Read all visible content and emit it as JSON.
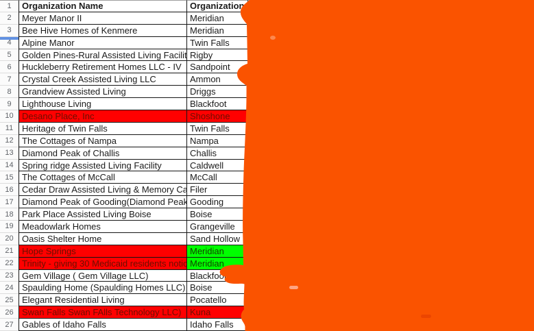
{
  "header": {
    "row_num": "1",
    "name_label": "Organization Name",
    "city_label": "Organization City"
  },
  "rows": [
    {
      "num": "2",
      "name": "Meyer Manor II",
      "city": "Meridian",
      "name_bg": "white",
      "city_bg": "white"
    },
    {
      "num": "3",
      "name": "Bee Hive Homes of Kenmere",
      "city": "Meridian",
      "name_bg": "white",
      "city_bg": "white"
    },
    {
      "num": "4",
      "name": "Alpine Manor",
      "city": "Twin Falls",
      "name_bg": "white",
      "city_bg": "white"
    },
    {
      "num": "5",
      "name": "Golden Pines-Rural Assisted Living Facilities LLC",
      "city": "Rigby",
      "name_bg": "white",
      "city_bg": "white"
    },
    {
      "num": "6",
      "name": "Huckleberry Retirement Homes LLC - IV",
      "city": "Sandpoint",
      "name_bg": "white",
      "city_bg": "white"
    },
    {
      "num": "7",
      "name": "Crystal Creek Assisted Living LLC",
      "city": "Ammon",
      "name_bg": "white",
      "city_bg": "white"
    },
    {
      "num": "8",
      "name": "Grandview Assisted Living",
      "city": "Driggs",
      "name_bg": "white",
      "city_bg": "white"
    },
    {
      "num": "9",
      "name": "Lighthouse Living",
      "city": "Blackfoot",
      "name_bg": "white",
      "city_bg": "white"
    },
    {
      "num": "10",
      "name": "Desano Place, Inc",
      "city": "Shoshone",
      "name_bg": "red",
      "city_bg": "red"
    },
    {
      "num": "11",
      "name": "Heritage of Twin Falls",
      "city": "Twin Falls",
      "name_bg": "white",
      "city_bg": "white"
    },
    {
      "num": "12",
      "name": "The Cottages of Nampa",
      "city": "Nampa",
      "name_bg": "white",
      "city_bg": "white"
    },
    {
      "num": "13",
      "name": "Diamond Peak of Challis",
      "city": "Challis",
      "name_bg": "white",
      "city_bg": "white"
    },
    {
      "num": "14",
      "name": "Spring ridge Assisted Living Facility",
      "city": "Caldwell",
      "name_bg": "white",
      "city_bg": "white"
    },
    {
      "num": "15",
      "name": "The Cottages of McCall",
      "city": "McCall",
      "name_bg": "white",
      "city_bg": "white"
    },
    {
      "num": "16",
      "name": "Cedar Draw Assisted Living & Memory Care",
      "city": "Filer",
      "name_bg": "white",
      "city_bg": "white"
    },
    {
      "num": "17",
      "name": "Diamond Peak of Gooding(Diamond Peak Healthc",
      "city": "Gooding",
      "name_bg": "white",
      "city_bg": "white"
    },
    {
      "num": "18",
      "name": "Park Place Assisted Living Boise",
      "city": "Boise",
      "name_bg": "white",
      "city_bg": "white"
    },
    {
      "num": "19",
      "name": "Meadowlark Homes",
      "city": "Grangeville",
      "name_bg": "white",
      "city_bg": "white"
    },
    {
      "num": "20",
      "name": "Oasis Shelter Home",
      "city": "Sand Hollow",
      "name_bg": "white",
      "city_bg": "white"
    },
    {
      "num": "21",
      "name": "Hope Springs",
      "city": "Meridian",
      "name_bg": "red",
      "city_bg": "green"
    },
    {
      "num": "22",
      "name": "Trinity - giving 30 Medicaid residents notice",
      "city": "Meridian",
      "name_bg": "red",
      "city_bg": "green"
    },
    {
      "num": "23",
      "name": "Gem Village ( Gem Village LLC)",
      "city": "Blackfoot",
      "name_bg": "white",
      "city_bg": "white"
    },
    {
      "num": "24",
      "name": "Spaulding Home (Spaulding Homes LLC)",
      "city": "Boise",
      "name_bg": "white",
      "city_bg": "white"
    },
    {
      "num": "25",
      "name": "Elegant Residential Living",
      "city": "Pocatello",
      "name_bg": "white",
      "city_bg": "white"
    },
    {
      "num": "26",
      "name": "Swan Falls Swan FAlls Technology LLC)",
      "city": "Kuna",
      "name_bg": "red",
      "city_bg": "red"
    },
    {
      "num": "27",
      "name": "Gables of Idaho Falls",
      "city": "Idaho Falls",
      "name_bg": "white",
      "city_bg": "white"
    }
  ],
  "colors": {
    "highlight_red": "#ff0000",
    "highlight_red_text": "#6b0e00",
    "highlight_green": "#00ff00",
    "highlight_green_text": "#114000",
    "overlay_orange": "#fa5300",
    "frozen_bar_blue": "#6191e2"
  },
  "overlay": {
    "type": "orange-scribble",
    "description": "large opaque orange marker blob covering right side of sheet"
  }
}
